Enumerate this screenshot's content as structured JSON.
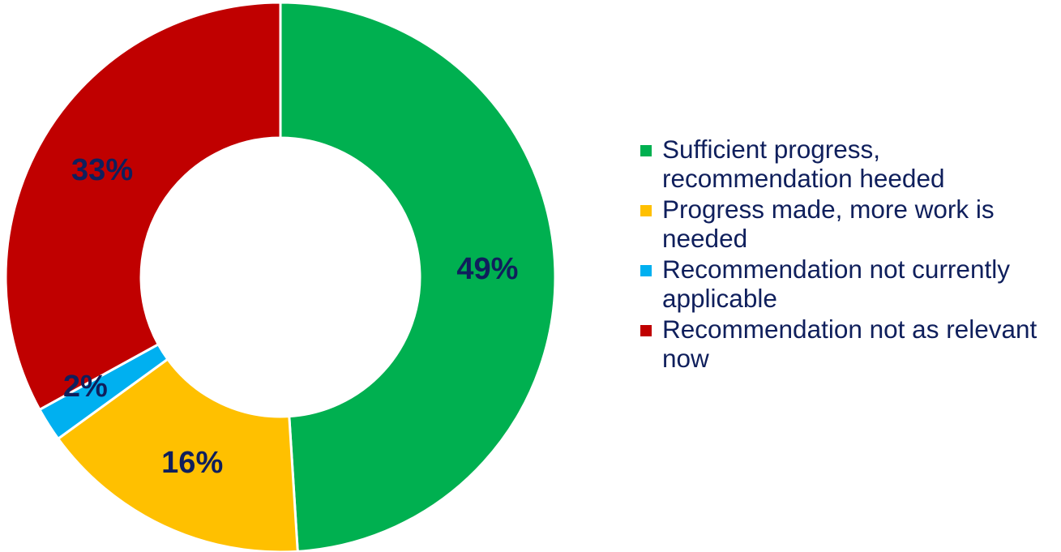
{
  "chart_data": {
    "type": "pie",
    "subtype": "donut",
    "title": "",
    "slices": [
      {
        "label": "Sufficient progress, recommendation heeded",
        "value": 49,
        "display": "49%",
        "color": "#00b050"
      },
      {
        "label": "Progress made, more work is needed",
        "value": 16,
        "display": "16%",
        "color": "#ffc000"
      },
      {
        "label": "Recommendation not currently applicable",
        "value": 2,
        "display": "2%",
        "color": "#00b0f0"
      },
      {
        "label": "Recommendation not as relevant now",
        "value": 33,
        "display": "33%",
        "color": "#c00000"
      }
    ],
    "start_angle_deg": 0,
    "direction": "clockwise",
    "legend_position": "right",
    "label_color": "#0f1f5c"
  }
}
